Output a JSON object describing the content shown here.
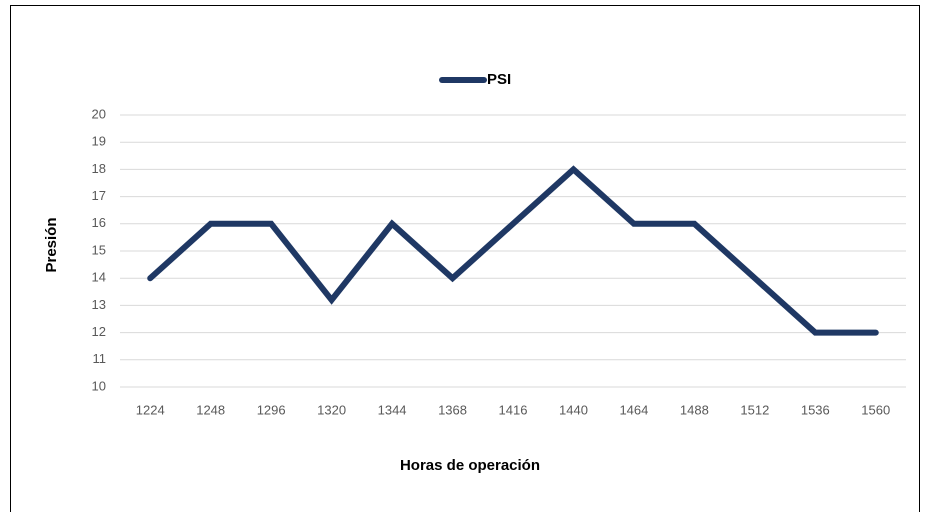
{
  "chart_data": {
    "type": "line",
    "x_label": "Horas de operación",
    "y_label": "Presión",
    "categories": [
      "1224",
      "1248",
      "1296",
      "1320",
      "1344",
      "1368",
      "1416",
      "1440",
      "1464",
      "1488",
      "1512",
      "1536",
      "1560"
    ],
    "series": [
      {
        "name": "PSI",
        "color": "#1f3864",
        "values": [
          14,
          16,
          16,
          13.2,
          16,
          14,
          16,
          18,
          16,
          16,
          14,
          12,
          12
        ]
      }
    ],
    "ylim": [
      10,
      20
    ],
    "yticks": [
      10,
      11,
      12,
      13,
      14,
      15,
      16,
      17,
      18,
      19,
      20
    ],
    "grid": true,
    "legend": "top"
  }
}
